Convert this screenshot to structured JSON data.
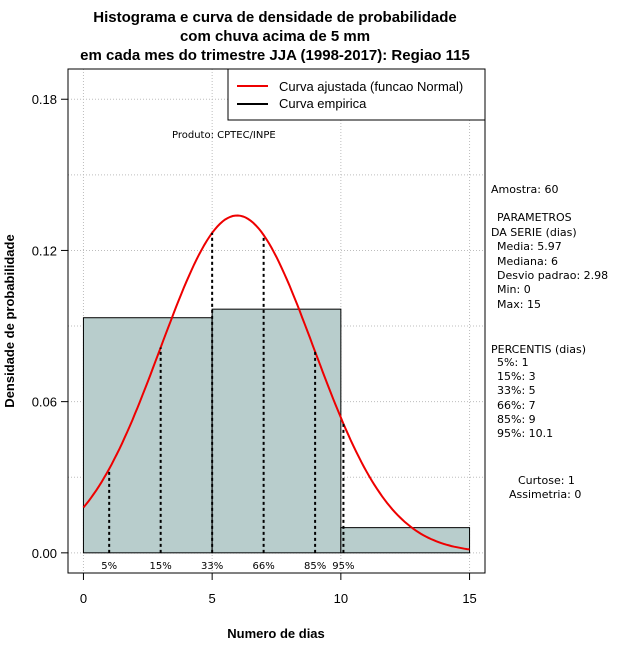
{
  "chart_data": {
    "type": "bar",
    "title_lines": [
      "Histograma e curva de densidade de probabilidade",
      "com chuva acima de 5 mm",
      "em cada mes do trimestre JJA (1998-2017): Regiao 115"
    ],
    "xlabel": "Numero de dias",
    "ylabel": "Densidade de probabilidade",
    "xlim": [
      -0.6,
      15.6
    ],
    "ylim": [
      -0.008,
      0.192
    ],
    "xticks": [
      0,
      5,
      10,
      15
    ],
    "yticks": [
      0.0,
      0.06,
      0.12,
      0.18
    ],
    "ytick_labels": [
      "0.00",
      "0.06",
      "0.12",
      "0.18"
    ],
    "grid": true,
    "bins": [
      {
        "start": 0,
        "end": 5,
        "density": 0.0933
      },
      {
        "start": 5,
        "end": 10,
        "density": 0.0967
      },
      {
        "start": 10,
        "end": 15,
        "density": 0.01
      }
    ],
    "bar_color": "#b8cdcc",
    "normal_curve": {
      "name": "Curva ajustada (funcao Normal)",
      "mean": 5.97,
      "sd": 2.98,
      "color": "#ee0000"
    },
    "empirical_legend": "Curva empirica",
    "legend_position": "top-right",
    "percentile_lines": [
      {
        "label": "5%",
        "x": 1
      },
      {
        "label": "15%",
        "x": 3
      },
      {
        "label": "33%",
        "x": 5
      },
      {
        "label": "66%",
        "x": 7
      },
      {
        "label": "85%",
        "x": 9
      },
      {
        "label": "95%",
        "x": 10.1
      }
    ],
    "product_note": "Produto: CPTEC/INPE"
  },
  "stats_panel": {
    "sample": "Amostra: 60",
    "params_header_1": "PARAMETROS",
    "params_header_2": "DA SERIE (dias)",
    "params": [
      "Media: 5.97",
      "Mediana: 6",
      "Desvio padrao: 2.98",
      "Min: 0",
      "Max: 15"
    ],
    "percentiles_header": "PERCENTIS (dias)",
    "percentiles": [
      "5%: 1",
      "15%: 3",
      "33%: 5",
      "66%: 7",
      "85%: 9",
      "95%: 10.1"
    ],
    "kurtosis": "Curtose: 1",
    "skewness": "Assimetria: 0"
  }
}
